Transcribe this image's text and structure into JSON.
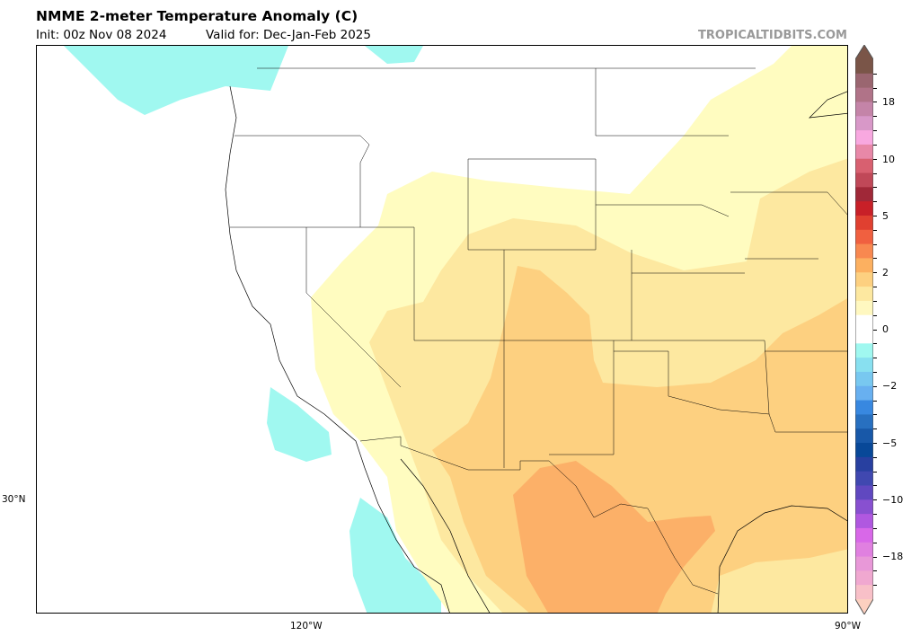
{
  "header": {
    "title": "NMME 2-meter Temperature Anomaly (C)",
    "init": "Init: 00z Nov 08 2024",
    "valid": "Valid for: Dec-Jan-Feb 2025",
    "brand": "TROPICALTIDBITS.COM"
  },
  "map": {
    "lat_labels": [
      "30°N"
    ],
    "lon_labels": [
      "120°W",
      "90°W"
    ],
    "colors": {
      "cyan": "#a0f8f0",
      "light_yellow": "#fffcc0",
      "yellow": "#fde8a0",
      "tan": "#fdd080",
      "orange": "#fcb068"
    }
  },
  "colorbar": {
    "labels": [
      "18",
      "10",
      "5",
      "2",
      "0",
      "−2",
      "−5",
      "−10",
      "−18"
    ],
    "top_arrow": "#7a5548",
    "bottom_arrow": "#fcd0c0",
    "colors": [
      "#7a5548",
      "#9a6670",
      "#b07388",
      "#c484a8",
      "#d898c8",
      "#f8a8e0",
      "#e888a8",
      "#d86070",
      "#c04858",
      "#a02838",
      "#c82028",
      "#e04030",
      "#f06040",
      "#f88850",
      "#fcb060",
      "#fdd080",
      "#fde8a0",
      "#fff8c0",
      "#ffffff",
      "#ffffff",
      "#a0f8f0",
      "#88e0f0",
      "#78c8f0",
      "#68b0f0",
      "#3888e0",
      "#2870c0",
      "#1858a8",
      "#084898",
      "#2840a0",
      "#4048b0",
      "#6048c0",
      "#8850d0",
      "#b058e0",
      "#d868e8",
      "#e080e0",
      "#e898d8",
      "#f0a8d0",
      "#f8c0c8"
    ]
  }
}
